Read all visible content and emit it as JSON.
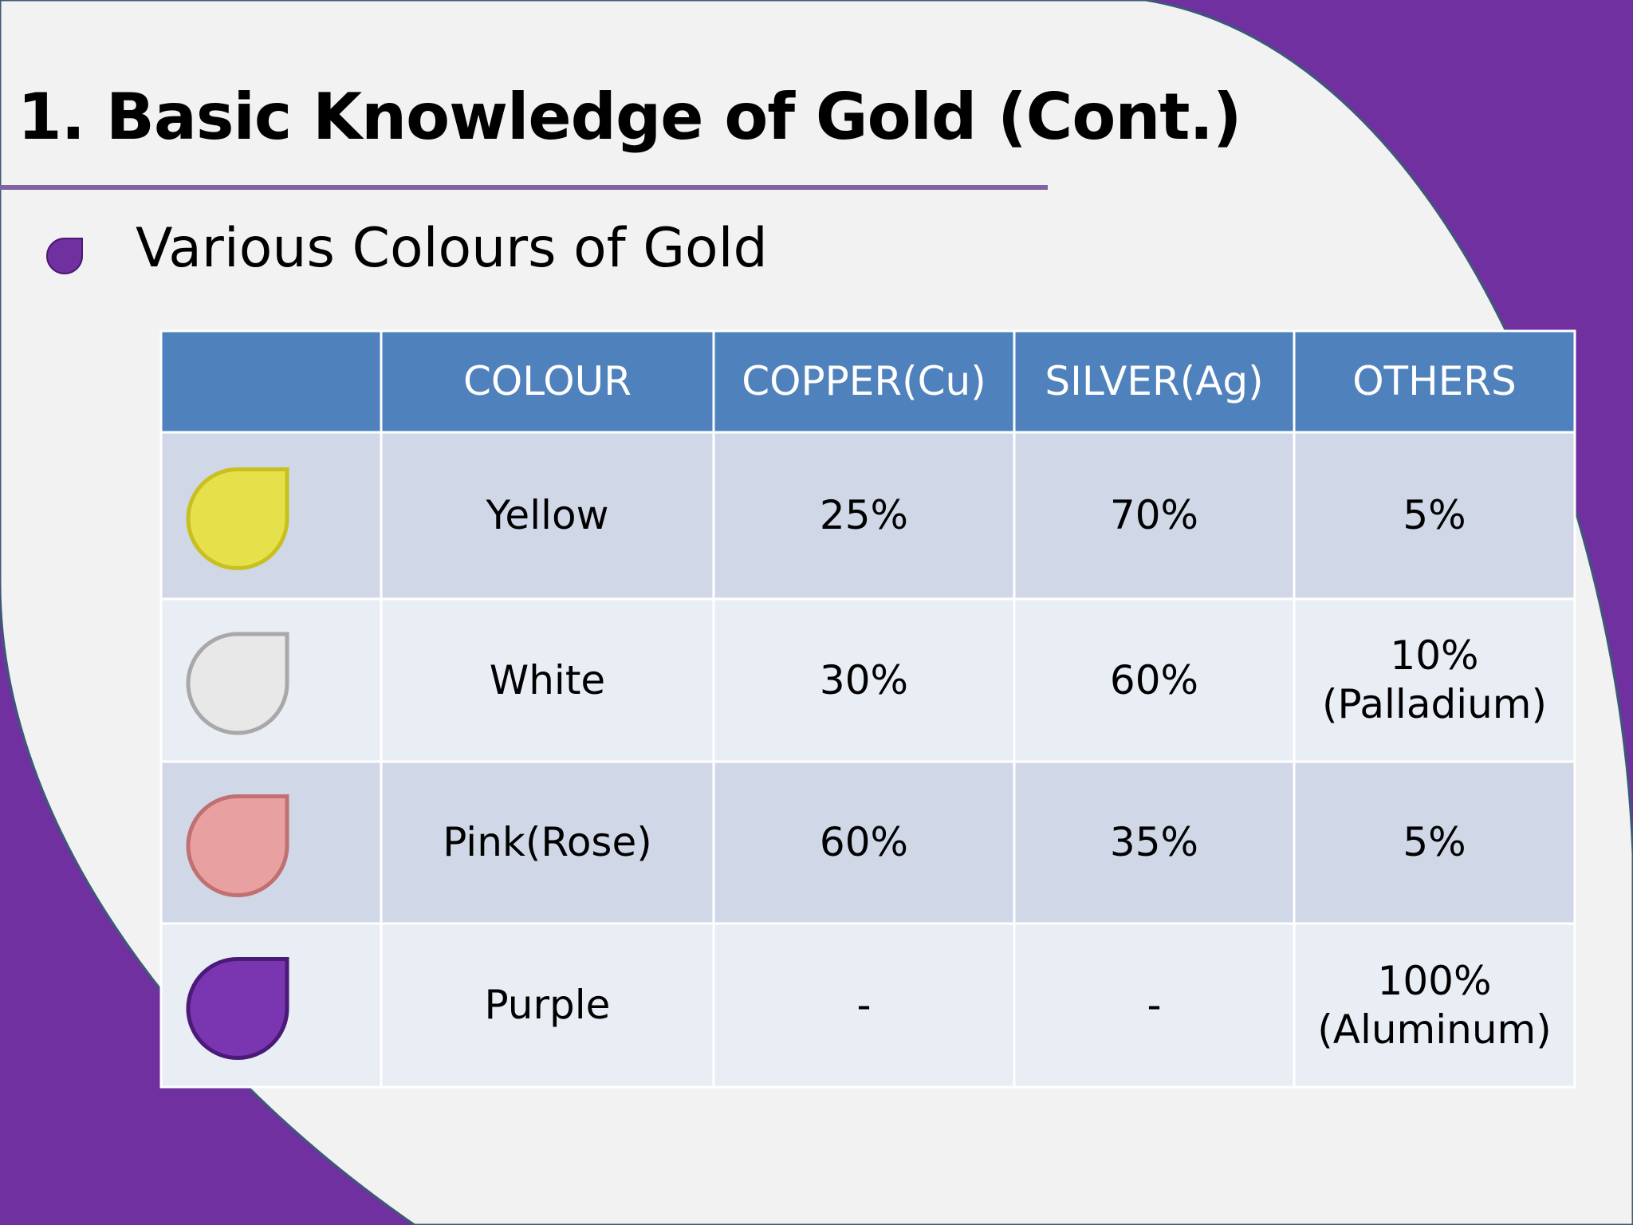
{
  "header": {
    "title": "1. Basic Knowledge of Gold (Cont.)"
  },
  "bullet": "Various Colours of Gold",
  "table": {
    "columns": [
      "COLOUR",
      "COPPER(Cu)",
      "SILVER(Ag)",
      "OTHERS"
    ],
    "rows": [
      [
        "Yellow",
        "25%",
        "70%",
        "5%"
      ],
      [
        "White",
        "30%",
        "60%",
        "10%\n(Palladium)"
      ],
      [
        "Pink(Rose)",
        "60%",
        "35%",
        "5%"
      ],
      [
        "Purple",
        "-",
        "-",
        "100%\n(Aluminum)"
      ]
    ]
  }
}
